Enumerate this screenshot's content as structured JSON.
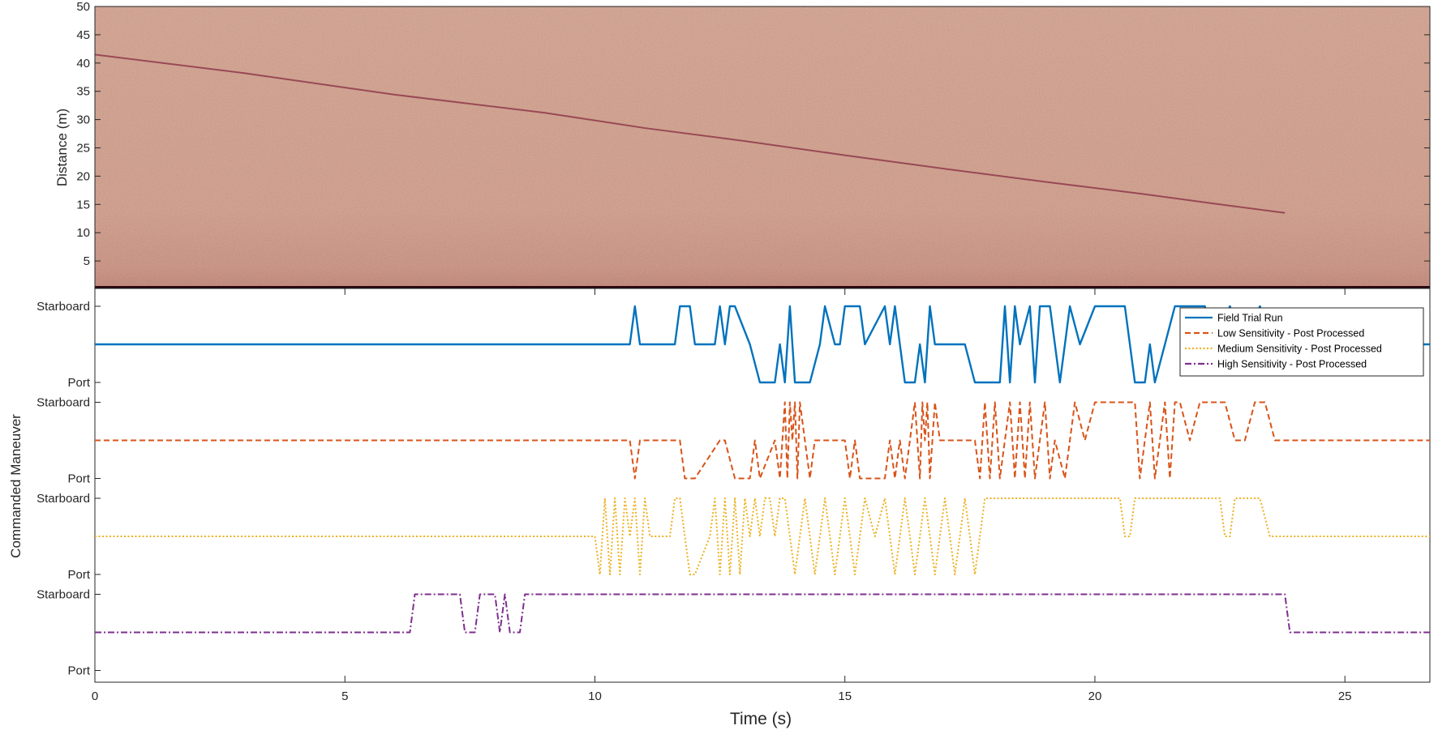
{
  "chart_data": [
    {
      "type": "heatmap",
      "ylabel": "Distance (m)",
      "ylim": [
        0,
        50
      ],
      "yticks": [
        5,
        10,
        15,
        20,
        25,
        30,
        35,
        40,
        45,
        50
      ],
      "xlim": [
        0,
        26.7
      ],
      "colormap": [
        "#d49a85",
        "#c98674",
        "#7a2238"
      ],
      "target_track": {
        "x": [
          0,
          3,
          6,
          9,
          11,
          13,
          15,
          17,
          19,
          21,
          22.5,
          23.8
        ],
        "y": [
          41.5,
          38.2,
          34.4,
          31.2,
          28.5,
          26.2,
          23.7,
          21.3,
          19.0,
          16.8,
          15.0,
          13.5
        ]
      }
    },
    {
      "type": "line",
      "xlabel": "Time (s)",
      "ylabel": "Commanded Maneuver",
      "xlim": [
        0,
        26.7
      ],
      "xticks": [
        0,
        5,
        10,
        15,
        20,
        25
      ],
      "level_labels": {
        "top": "Starboard",
        "bottom": "Port"
      },
      "legend_position": "top-right",
      "series": [
        {
          "name": "Field Trial Run",
          "color": "#0072bd",
          "style": "solid",
          "x": [
            0,
            10.7,
            10.8,
            10.9,
            11.6,
            11.7,
            11.9,
            12.0,
            12.4,
            12.5,
            12.6,
            12.7,
            12.8,
            13.1,
            13.3,
            13.6,
            13.7,
            13.8,
            13.9,
            14.0,
            14.3,
            14.5,
            14.6,
            14.8,
            14.9,
            15.0,
            15.3,
            15.4,
            15.8,
            15.9,
            16.0,
            16.1,
            16.2,
            16.4,
            16.5,
            16.6,
            16.7,
            16.8,
            16.9,
            17.4,
            17.6,
            18.1,
            18.2,
            18.3,
            18.4,
            18.5,
            18.7,
            18.8,
            18.9,
            19.1,
            19.3,
            19.4,
            19.5,
            19.7,
            20.0,
            20.6,
            20.7,
            20.8,
            21.0,
            21.1,
            21.2,
            21.4,
            21.6,
            21.9,
            22.2,
            22.4,
            22.7,
            23.0,
            23.3,
            23.6,
            26.7
          ],
          "y": [
            0,
            0,
            1,
            0,
            0,
            1,
            1,
            0,
            0,
            1,
            0,
            1,
            1,
            0,
            -1,
            -1,
            0,
            -1,
            1,
            -1,
            -1,
            0,
            1,
            0,
            0,
            1,
            1,
            0,
            1,
            0,
            1,
            0,
            -1,
            -1,
            0,
            -1,
            1,
            0,
            0,
            0,
            -1,
            -1,
            1,
            -1,
            1,
            0,
            1,
            -1,
            1,
            1,
            -1,
            0,
            1,
            0,
            1,
            1,
            0,
            -1,
            -1,
            0,
            -1,
            0,
            1,
            1,
            1,
            0,
            1,
            0,
            1,
            0,
            0
          ]
        },
        {
          "name": "Low Sensitivity - Post Processed",
          "color": "#d95319",
          "style": "dashed",
          "x": [
            0,
            10.7,
            10.8,
            10.9,
            11.7,
            11.8,
            12.0,
            12.5,
            12.6,
            12.8,
            13.1,
            13.2,
            13.3,
            13.6,
            13.7,
            13.8,
            13.85,
            13.9,
            13.95,
            14.0,
            14.05,
            14.1,
            14.2,
            14.3,
            14.4,
            15.0,
            15.1,
            15.2,
            15.3,
            15.8,
            15.9,
            16.0,
            16.1,
            16.2,
            16.3,
            16.4,
            16.5,
            16.55,
            16.6,
            16.65,
            16.7,
            16.75,
            16.8,
            16.9,
            17.0,
            17.6,
            17.7,
            17.8,
            17.9,
            18.0,
            18.1,
            18.2,
            18.3,
            18.4,
            18.5,
            18.6,
            18.7,
            18.8,
            18.9,
            19.0,
            19.1,
            19.2,
            19.4,
            19.6,
            19.8,
            20.0,
            20.8,
            20.9,
            21.0,
            21.1,
            21.2,
            21.3,
            21.4,
            21.5,
            21.6,
            21.7,
            21.9,
            22.1,
            22.2,
            22.6,
            22.8,
            23.0,
            23.2,
            23.4,
            23.6,
            26.7
          ],
          "y": [
            0,
            0,
            -1,
            0,
            0,
            -1,
            -1,
            0,
            0,
            -1,
            -1,
            0,
            -1,
            0,
            -1,
            1,
            -1,
            1,
            0,
            1,
            -1,
            1,
            0,
            -1,
            0,
            0,
            -1,
            0,
            -1,
            -1,
            0,
            -1,
            0,
            -1,
            0,
            1,
            -1,
            1,
            0,
            1,
            -1,
            0,
            1,
            0,
            0,
            0,
            -1,
            1,
            -1,
            1,
            -1,
            0,
            1,
            -1,
            1,
            -1,
            1,
            -1,
            0,
            1,
            -1,
            0,
            -1,
            1,
            0,
            1,
            1,
            -1,
            0,
            1,
            -1,
            0,
            1,
            -1,
            1,
            1,
            0,
            1,
            1,
            1,
            0,
            0,
            1,
            1,
            0,
            0
          ]
        },
        {
          "name": "Medium Sensitivity - Post Processed",
          "color": "#edb120",
          "style": "dotted",
          "x": [
            0,
            10.0,
            10.1,
            10.2,
            10.3,
            10.4,
            10.5,
            10.6,
            10.7,
            10.8,
            10.9,
            11.0,
            11.1,
            11.3,
            11.5,
            11.6,
            11.7,
            11.8,
            11.9,
            12.0,
            12.3,
            12.4,
            12.5,
            12.6,
            12.7,
            12.8,
            12.9,
            13.0,
            13.1,
            13.2,
            13.3,
            13.4,
            13.5,
            13.6,
            13.7,
            13.8,
            14.0,
            14.2,
            14.4,
            14.6,
            14.8,
            15.0,
            15.2,
            15.4,
            15.6,
            15.8,
            16.0,
            16.2,
            16.4,
            16.6,
            16.8,
            17.0,
            17.2,
            17.4,
            17.6,
            17.8,
            18.0,
            20.5,
            20.6,
            20.7,
            20.8,
            22.5,
            22.6,
            22.7,
            22.8,
            23.3,
            23.5,
            26.7
          ],
          "y": [
            0,
            0,
            -1,
            1,
            -1,
            1,
            -1,
            1,
            0,
            1,
            -1,
            1,
            0,
            0,
            0,
            1,
            1,
            0,
            -1,
            -1,
            0,
            1,
            -1,
            1,
            -1,
            1,
            -1,
            1,
            0,
            1,
            0,
            1,
            1,
            0,
            1,
            1,
            -1,
            1,
            -1,
            1,
            -1,
            1,
            -1,
            1,
            0,
            1,
            -1,
            1,
            -1,
            1,
            -1,
            1,
            -1,
            1,
            -1,
            1,
            1,
            1,
            0,
            0,
            1,
            1,
            0,
            0,
            1,
            1,
            0,
            0
          ]
        },
        {
          "name": "High Sensitivity - Post Processed",
          "color": "#7e2f8e",
          "style": "dashdot",
          "x": [
            0,
            6.3,
            6.4,
            7.3,
            7.4,
            7.6,
            7.7,
            8.0,
            8.1,
            8.2,
            8.3,
            8.4,
            8.5,
            8.6,
            23.8,
            23.9,
            26.7
          ],
          "y": [
            0,
            0,
            1,
            1,
            0,
            0,
            1,
            1,
            0,
            1,
            0,
            0,
            0,
            1,
            1,
            0,
            0
          ]
        }
      ]
    }
  ]
}
